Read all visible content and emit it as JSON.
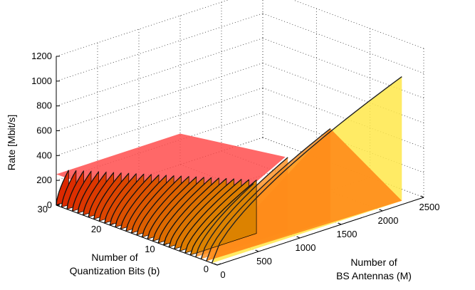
{
  "chart_data": {
    "type": "surface3d",
    "zlabel": "Rate [Mbit/s]",
    "xlabel_lines": [
      "Number of",
      "Quantization Bits (b)"
    ],
    "ylabel_lines": [
      "Number of",
      "BS Antennas (M)"
    ],
    "bits_ticks": [
      "0",
      "10",
      "20",
      "30"
    ],
    "antenna_ticks": [
      "0",
      "500",
      "1000",
      "1500",
      "2000",
      "2500"
    ],
    "rate_ticks": [
      "0",
      "200",
      "400",
      "600",
      "800",
      "1000",
      "1200"
    ],
    "bits_range": [
      0,
      30
    ],
    "antennas_range": [
      0,
      2500
    ],
    "rate_range": [
      0,
      1200
    ],
    "grid": true,
    "colors": {
      "low": "#d81c00",
      "mid": "#ff8c1a",
      "high": "#ffe84a",
      "back": "#ff4d4d"
    },
    "series": [
      {
        "bits": 1,
        "max_antennas": 2300,
        "rate_at_max": 1000
      },
      {
        "bits": 2,
        "max_antennas": 1500,
        "rate_at_max": 740
      },
      {
        "bits": 3,
        "max_antennas": 1050,
        "rate_at_max": 590
      },
      {
        "bits": 4,
        "max_antennas": 700,
        "rate_at_max": 440
      }
    ],
    "back_rate": 250
  }
}
